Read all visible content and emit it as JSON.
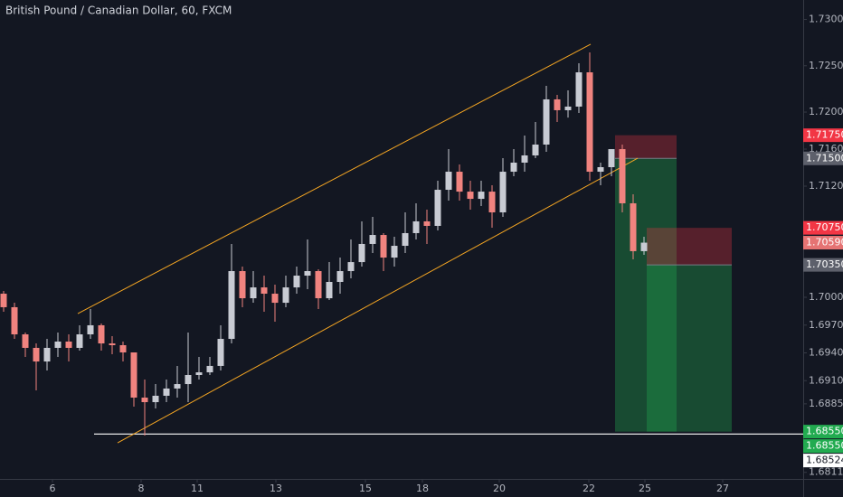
{
  "chart_data": {
    "type": "candlestick",
    "title": "British Pound / Canadian Dollar, 60, FXCM",
    "x": [
      4,
      16,
      28,
      40,
      52,
      64,
      76,
      88,
      100,
      112,
      124,
      136,
      148,
      160,
      172,
      184,
      196,
      208,
      220,
      232,
      244,
      256,
      268,
      280,
      292,
      304,
      316,
      328,
      340,
      352,
      364,
      376,
      388,
      400,
      412,
      424,
      436,
      448,
      460,
      472,
      484,
      496,
      508,
      520,
      532,
      544,
      556,
      568,
      580,
      592,
      604,
      616,
      628,
      640,
      652,
      664,
      676,
      688,
      700,
      712
    ],
    "open": [
      1.70039,
      1.69893,
      1.696,
      1.69454,
      1.69307,
      1.69454,
      1.69522,
      1.69454,
      1.696,
      1.69698,
      1.69502,
      1.69483,
      1.69405,
      1.68917,
      1.68868,
      1.68937,
      1.69015,
      1.69063,
      1.69161,
      1.6919,
      1.69259,
      1.69551,
      1.70283,
      1.6999,
      1.70107,
      1.70039,
      1.69941,
      1.70107,
      1.70234,
      1.70283,
      1.6999,
      1.70166,
      1.70283,
      1.7038,
      1.70576,
      1.70673,
      1.70429,
      1.70556,
      1.70693,
      1.7082,
      1.70771,
      1.71161,
      1.71356,
      1.71141,
      1.71063,
      1.71141,
      1.70917,
      1.71356,
      1.71454,
      1.71532,
      1.71649,
      1.72137,
      1.7202,
      1.72059,
      1.72429,
      1.71356,
      1.71405,
      1.716,
      1.71015,
      1.70498
    ],
    "high": [
      1.70068,
      1.69941,
      1.6962,
      1.69502,
      1.69551,
      1.6962,
      1.696,
      1.69698,
      1.69873,
      1.69717,
      1.6958,
      1.69522,
      1.69405,
      1.69112,
      1.69063,
      1.69112,
      1.69259,
      1.6962,
      1.69356,
      1.69356,
      1.69698,
      1.70576,
      1.70332,
      1.70283,
      1.70234,
      1.70137,
      1.70234,
      1.70332,
      1.70624,
      1.70302,
      1.7038,
      1.70429,
      1.70624,
      1.7082,
      1.70868,
      1.70693,
      1.70654,
      1.70917,
      1.71015,
      1.70946,
      1.71259,
      1.716,
      1.71434,
      1.71259,
      1.71259,
      1.7121,
      1.71502,
      1.716,
      1.71746,
      1.71893,
      1.72283,
      1.72185,
      1.72234,
      1.72527,
      1.72644,
      1.71454,
      1.716,
      1.71649,
      1.71112,
      1.70654
    ],
    "low": [
      1.69844,
      1.69551,
      1.69356,
      1.68995,
      1.6921,
      1.69356,
      1.69307,
      1.69424,
      1.69551,
      1.69424,
      1.69385,
      1.69307,
      1.6882,
      1.68507,
      1.688,
      1.68868,
      1.68917,
      1.68868,
      1.69112,
      1.69161,
      1.6921,
      1.69502,
      1.69893,
      1.69941,
      1.69844,
      1.69737,
      1.69893,
      1.70039,
      1.70088,
      1.69873,
      1.69971,
      1.70039,
      1.70205,
      1.70332,
      1.70478,
      1.70283,
      1.70332,
      1.70478,
      1.70624,
      1.70576,
      1.70722,
      1.71044,
      1.71044,
      1.70946,
      1.70985,
      1.70751,
      1.70868,
      1.71307,
      1.71356,
      1.71502,
      1.71571,
      1.71893,
      1.71941,
      1.7199,
      1.71259,
      1.7121,
      1.71307,
      1.70917,
      1.7041,
      1.70459
    ],
    "close": [
      1.69893,
      1.696,
      1.69454,
      1.69307,
      1.69454,
      1.69522,
      1.69454,
      1.696,
      1.69698,
      1.69502,
      1.69483,
      1.69405,
      1.68917,
      1.68868,
      1.68937,
      1.69015,
      1.69063,
      1.69161,
      1.6919,
      1.69259,
      1.69551,
      1.70283,
      1.6999,
      1.70107,
      1.70039,
      1.69941,
      1.70107,
      1.70234,
      1.70283,
      1.6999,
      1.70166,
      1.70283,
      1.7038,
      1.70576,
      1.70673,
      1.70429,
      1.70556,
      1.70693,
      1.7082,
      1.70771,
      1.71161,
      1.71356,
      1.71141,
      1.71063,
      1.71141,
      1.70917,
      1.71356,
      1.71454,
      1.71532,
      1.71649,
      1.72137,
      1.7202,
      1.72059,
      1.72429,
      1.71356,
      1.71405,
      1.716,
      1.71015,
      1.70498,
      1.7059
    ],
    "up_color": "#c8cbd3",
    "down_color": "#f0837f",
    "xlim": [
      0,
      888
    ],
    "ylim": [
      1.68039,
      1.7321
    ],
    "xticks": [
      {
        "value": 58,
        "label": "6"
      },
      {
        "value": 156,
        "label": "8"
      },
      {
        "value": 218,
        "label": "11"
      },
      {
        "value": 305,
        "label": "13"
      },
      {
        "value": 404,
        "label": "15"
      },
      {
        "value": 467,
        "label": "18"
      },
      {
        "value": 552,
        "label": "20"
      },
      {
        "value": 651,
        "label": "22"
      },
      {
        "value": 713,
        "label": "25"
      },
      {
        "value": 799,
        "label": "27"
      }
    ],
    "yticks": [
      {
        "value": 1.73,
        "label": "1.73000"
      },
      {
        "value": 1.725,
        "label": "1.72500"
      },
      {
        "value": 1.72,
        "label": "1.72000"
      },
      {
        "value": 1.716,
        "label": "1.71600"
      },
      {
        "value": 1.712,
        "label": "1.71200"
      },
      {
        "value": 1.7,
        "label": "1.70000"
      },
      {
        "value": 1.697,
        "label": "1.69700"
      },
      {
        "value": 1.694,
        "label": "1.69400"
      },
      {
        "value": 1.691,
        "label": "1.69100"
      },
      {
        "value": 1.6885,
        "label": "1.68850"
      },
      {
        "value": 1.6811,
        "label": "1.68110"
      }
    ],
    "trend_lines": [
      {
        "color": "#f5a623",
        "x": [
          86,
          653
        ],
        "values": [
          1.69824,
          1.72732
        ]
      },
      {
        "color": "#f5a623",
        "x": [
          130,
          705
        ],
        "values": [
          1.68429,
          1.71502
        ]
      }
    ],
    "horizontal_line": {
      "value": 1.68524,
      "x_start": 104,
      "color": "#ffffff"
    },
    "positions": [
      {
        "start": 680,
        "end": 748,
        "entry": 1.715,
        "stop": 1.7175,
        "target": 1.6855
      },
      {
        "start": 715,
        "end": 809,
        "entry": 1.7035,
        "stop": 1.7075,
        "target": 1.6855
      }
    ],
    "stop_color": "#f23645",
    "target_color": "#22ab50",
    "price_labels": [
      {
        "value": 1.7175,
        "label": "1.71750",
        "color": "#f23645"
      },
      {
        "value": 1.715,
        "label": "1.71500",
        "color": "#5d606b"
      },
      {
        "value": 1.7075,
        "label": "1.70750",
        "color": "#f23645"
      },
      {
        "value": 1.7059,
        "label": "1.70590",
        "color": "#e57373"
      },
      {
        "value": 1.7035,
        "label": "1.70350",
        "color": "#5d606b"
      },
      {
        "value": 1.6855,
        "label": "1.68550",
        "color": "#22ab50"
      },
      {
        "value": 1.6855,
        "label": "1.68550",
        "color": "#22ab50"
      },
      {
        "value": 1.68524,
        "label": "1.68524",
        "color": "#ffffff"
      }
    ]
  }
}
